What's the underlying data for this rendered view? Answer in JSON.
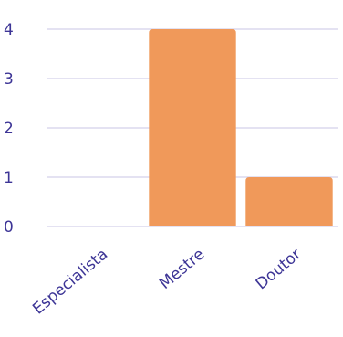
{
  "chart_data": {
    "type": "bar",
    "categories": [
      "Especialista",
      "Mestre",
      "Doutor"
    ],
    "values": [
      0,
      4,
      1
    ],
    "title": "",
    "xlabel": "",
    "ylabel": "",
    "ylim": [
      0,
      4
    ],
    "yticks": [
      0,
      1,
      2,
      3,
      4
    ],
    "grid": true,
    "bar_color": "#f0995a",
    "tick_color": "#3d3596",
    "grid_color": "#c9c6e6"
  }
}
